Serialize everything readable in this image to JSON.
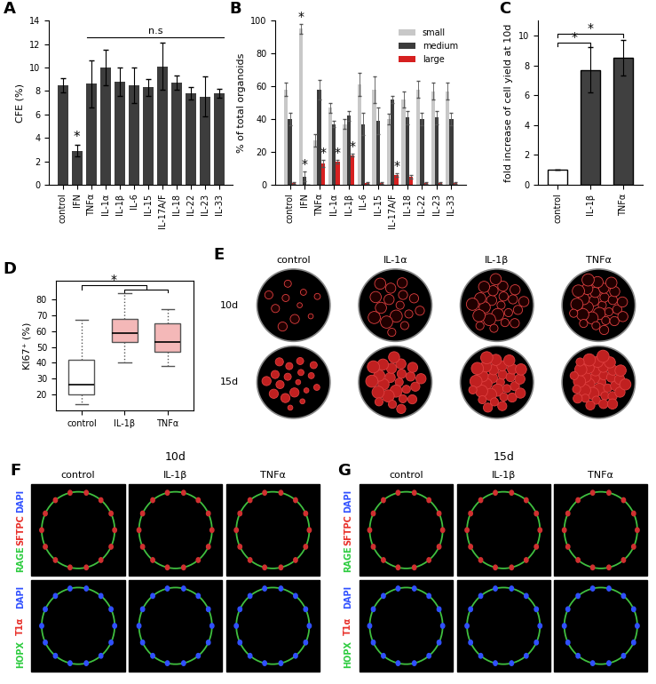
{
  "chart_data": [
    {
      "panel": "A",
      "type": "bar",
      "ylabel": "CFE (%)",
      "categories": [
        "control",
        "IFN",
        "TNFα",
        "IL-1α",
        "IL-1β",
        "IL-6",
        "IL-15",
        "IL-17A/F",
        "IL-18",
        "IL-22",
        "IL-23",
        "IL-33"
      ],
      "values": [
        8.5,
        2.9,
        8.6,
        10.0,
        8.8,
        8.5,
        8.3,
        10.1,
        8.7,
        7.8,
        7.5,
        7.8
      ],
      "errors": [
        0.6,
        0.5,
        2.0,
        1.5,
        1.2,
        1.5,
        0.7,
        2.0,
        0.6,
        0.5,
        1.7,
        0.4
      ],
      "color": "#3d3d3d",
      "ylim": [
        0,
        14
      ],
      "yticks": [
        0,
        2,
        4,
        6,
        8,
        10,
        12,
        14
      ],
      "annotations": [
        {
          "category": "IFN",
          "text": "*"
        }
      ],
      "brackets": [
        {
          "from": "TNFα",
          "to": "IL-33",
          "text": "n.s"
        }
      ]
    },
    {
      "panel": "B",
      "type": "bar",
      "ylabel": "% of total organoids",
      "categories": [
        "control",
        "IFN",
        "TNFα",
        "IL-1α",
        "IL-1β",
        "IL-6",
        "IL-15",
        "IL-17A/F",
        "IL-18",
        "IL-22",
        "IL-23",
        "IL-33"
      ],
      "series": [
        {
          "name": "small",
          "color": "#c8c8c8",
          "values": [
            58,
            95,
            27,
            47,
            37,
            61,
            58,
            40,
            52,
            58,
            57,
            57
          ],
          "errors": [
            4,
            3,
            4,
            3,
            3,
            7,
            8,
            3,
            5,
            5,
            5,
            5
          ]
        },
        {
          "name": "medium",
          "color": "#3c3c3c",
          "values": [
            40,
            5,
            58,
            37,
            42,
            37,
            39,
            52,
            41,
            40,
            41,
            40
          ],
          "errors": [
            4,
            3,
            6,
            2,
            3,
            7,
            8,
            2,
            4,
            4,
            4,
            4
          ]
        },
        {
          "name": "large",
          "color": "#d62020",
          "values": [
            1,
            0,
            13,
            14,
            18,
            1,
            1,
            6,
            5,
            1,
            1,
            1
          ],
          "errors": [
            0.5,
            0,
            2,
            1,
            1,
            0.5,
            0.5,
            1,
            1,
            0.5,
            0.5,
            0.5
          ]
        }
      ],
      "ylim": [
        0,
        100
      ],
      "yticks": [
        0,
        20,
        40,
        60,
        80,
        100
      ],
      "legend": "upper right",
      "annotations": [
        {
          "category": "IFN",
          "series": "small",
          "text": "*"
        },
        {
          "category": "IFN",
          "series": "medium",
          "text": "*"
        },
        {
          "category": "TNFα",
          "series": "large",
          "text": "*"
        },
        {
          "category": "IL-1α",
          "series": "large",
          "text": "*"
        },
        {
          "category": "IL-1β",
          "series": "large",
          "text": "*"
        },
        {
          "category": "IL-17A/F",
          "series": "large",
          "text": "*"
        }
      ]
    },
    {
      "panel": "C",
      "type": "bar",
      "ylabel": "fold increase of cell yield at 10d",
      "categories": [
        "control",
        "IL-1β",
        "TNFα"
      ],
      "values": [
        1,
        7.7,
        8.5
      ],
      "errors": [
        0,
        1.5,
        1.2
      ],
      "colors": [
        "#ffffff",
        "#404040",
        "#404040"
      ],
      "ylim": [
        0,
        11
      ],
      "yticks": [
        0,
        2,
        4,
        6,
        8,
        10
      ],
      "brackets": [
        {
          "from": "control",
          "to": "IL-1β",
          "text": "*"
        },
        {
          "from": "control",
          "to": "TNFα",
          "text": "*"
        }
      ]
    },
    {
      "panel": "D",
      "type": "box",
      "ylabel": "KI67⁺ (%)",
      "categories": [
        "control",
        "IL-1β",
        "TNFα"
      ],
      "boxes": [
        {
          "whislo": 14,
          "q1": 20,
          "med": 26,
          "q3": 42,
          "whishi": 67
        },
        {
          "whislo": 40,
          "q1": 53,
          "med": 59,
          "q3": 68,
          "whishi": 84
        },
        {
          "whislo": 38,
          "q1": 47,
          "med": 53,
          "q3": 65,
          "whishi": 74
        }
      ],
      "colors": [
        "#ffffff",
        "#f4b8b8",
        "#f4b8b8"
      ],
      "ylim": [
        10,
        92
      ],
      "yticks": [
        20,
        30,
        40,
        50,
        60,
        70,
        80
      ],
      "brackets": [
        {
          "groups": [
            [
              "control"
            ],
            [
              "IL-1β",
              "TNFα"
            ]
          ],
          "text": "*"
        }
      ]
    }
  ],
  "image_panels": [
    {
      "panel": "E",
      "columns": [
        "control",
        "IL-1α",
        "IL-1β",
        "TNFα"
      ],
      "rows": [
        "10d",
        "15d"
      ]
    },
    {
      "panel": "F",
      "title": "10d",
      "columns": [
        "control",
        "IL-1β",
        "TNFα"
      ],
      "rows": [
        [
          {
            "text": "RAGE",
            "color": "#2ecc40"
          },
          {
            "text": "SFTPC",
            "color": "#e8302a"
          },
          {
            "text": "DAPI",
            "color": "#3050ff"
          }
        ],
        [
          {
            "text": "HOPX",
            "color": "#2ecc40"
          },
          {
            "text": "T1α",
            "color": "#e8302a"
          },
          {
            "text": "DAPI",
            "color": "#3050ff"
          }
        ]
      ]
    },
    {
      "panel": "G",
      "title": "15d",
      "columns": [
        "control",
        "IL-1β",
        "TNFα"
      ],
      "rows": [
        [
          {
            "text": "RAGE",
            "color": "#2ecc40"
          },
          {
            "text": "SFTPC",
            "color": "#e8302a"
          },
          {
            "text": "DAPI",
            "color": "#3050ff"
          }
        ],
        [
          {
            "text": "HOPX",
            "color": "#2ecc40"
          },
          {
            "text": "T1α",
            "color": "#e8302a"
          },
          {
            "text": "DAPI",
            "color": "#3050ff"
          }
        ]
      ]
    }
  ]
}
